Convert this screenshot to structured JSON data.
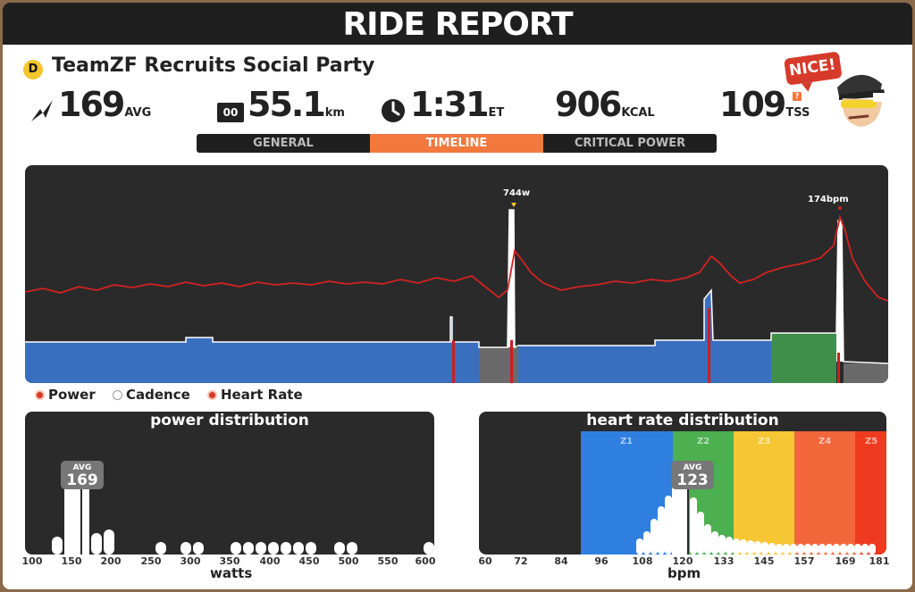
{
  "header": {
    "title": "RIDE REPORT"
  },
  "event": {
    "category": "D",
    "name": "TeamZF Recruits Social Party"
  },
  "stats": {
    "power": {
      "icon": "power-bolt-icon",
      "value": "169",
      "unit": "AVG"
    },
    "distance": {
      "icon": "odometer-icon",
      "icon_text": "00",
      "value": "55.1",
      "unit": "km"
    },
    "time": {
      "icon": "clock-icon",
      "value": "1:31",
      "unit": "ET"
    },
    "calories": {
      "value": "906",
      "unit": "KCAL"
    },
    "tss": {
      "value": "109",
      "unit": "TSS",
      "help": "?"
    }
  },
  "mascot": {
    "speech": "NICE!",
    "icon": "cyclist-mascot-icon"
  },
  "tabs": [
    {
      "label": "GENERAL",
      "active": false
    },
    {
      "label": "TIMELINE",
      "active": true
    },
    {
      "label": "CRITICAL POWER",
      "active": false
    }
  ],
  "timeline": {
    "peak_power_label": "744w",
    "peak_hr_label": "174bpm"
  },
  "legend": {
    "power": "Power",
    "cadence": "Cadence",
    "heart_rate": "Heart Rate"
  },
  "colors": {
    "accent": "#f2783e",
    "power_z1": "#3a6fbf",
    "power_recovery": "#6a6a6a",
    "power_z3": "#3f8f4a",
    "heart_rate_line": "#cc1f1f",
    "hr_z1": "#2f7fe0",
    "hr_z2": "#4caf50",
    "hr_z3": "#f7c634",
    "hr_z4": "#f2663a",
    "hr_z5": "#ee3b1f"
  },
  "power_distribution": {
    "title": "power distribution",
    "avg_label": "AVG",
    "avg_value": "169",
    "axis_title": "watts",
    "ticks": [
      "100",
      "150",
      "200",
      "250",
      "300",
      "350",
      "400",
      "450",
      "500",
      "550",
      "600"
    ]
  },
  "heart_rate_distribution": {
    "title": "heart rate distribution",
    "avg_label": "AVG",
    "avg_value": "123",
    "axis_title": "bpm",
    "ticks": [
      "60",
      "72",
      "84",
      "96",
      "108",
      "120",
      "133",
      "145",
      "157",
      "169",
      "181"
    ],
    "zones": [
      "Z1",
      "Z2",
      "Z3",
      "Z4",
      "Z5"
    ]
  }
}
